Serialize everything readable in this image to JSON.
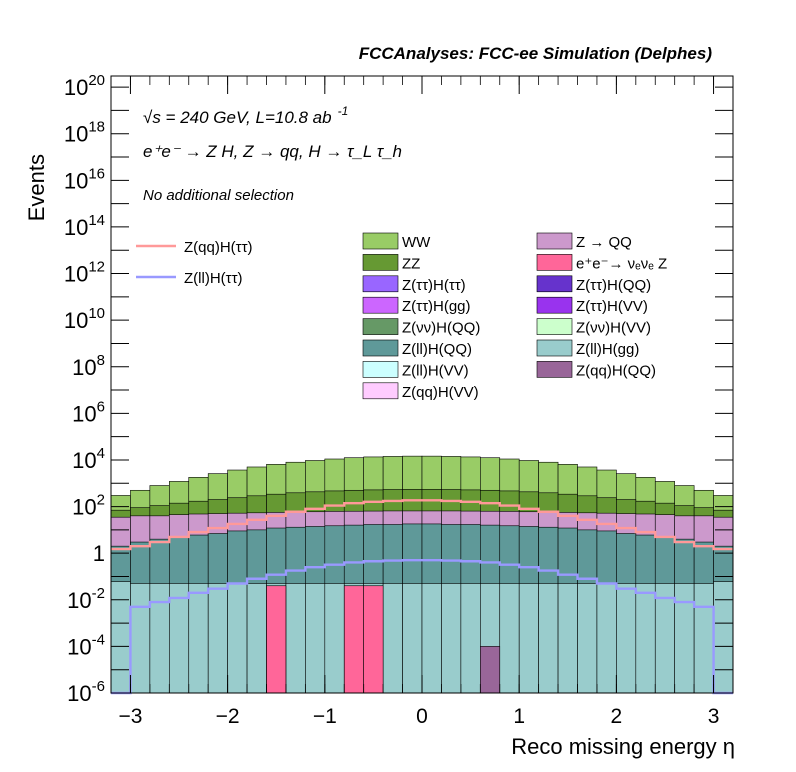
{
  "header": {
    "title": "FCCAnalyses: FCC-ee Simulation (Delphes)",
    "energy_line": "√s = 240 GeV, L=10.8 ab",
    "lumi_exp": "-1",
    "process_line": "e⁺e⁻ → Z H, Z → qq, H → τ_L τ_h",
    "selection": "No additional selection"
  },
  "chart_data": {
    "type": "bar",
    "stacked": true,
    "log_y": true,
    "xlabel": "Reco missing energy η",
    "ylabel": "Events",
    "xlim": [
      -3.2,
      3.2
    ],
    "ylim": [
      1e-06,
      3e+20
    ],
    "x_ticks": [
      -3,
      -2,
      -1,
      0,
      1,
      2,
      3
    ],
    "x_tick_labels": [
      "−3",
      "−2",
      "−1",
      "0",
      "1",
      "2",
      "3"
    ],
    "y_ticks": [
      1e-06,
      0.0001,
      0.01,
      1,
      100.0,
      10000.0,
      1000000.0,
      100000000.0,
      10000000000.0,
      1000000000000.0,
      100000000000000.0,
      1e+16,
      1e+18,
      1e+20
    ],
    "y_tick_labels": [
      {
        "base": "10",
        "exp": "-6"
      },
      {
        "base": "10",
        "exp": "-4"
      },
      {
        "base": "10",
        "exp": "-2"
      },
      {
        "base": "1",
        "exp": ""
      },
      {
        "base": "10",
        "exp": "2"
      },
      {
        "base": "10",
        "exp": "4"
      },
      {
        "base": "10",
        "exp": "6"
      },
      {
        "base": "10",
        "exp": "8"
      },
      {
        "base": "10",
        "exp": "10"
      },
      {
        "base": "10",
        "exp": "12"
      },
      {
        "base": "10",
        "exp": "14"
      },
      {
        "base": "10",
        "exp": "16"
      },
      {
        "base": "10",
        "exp": "18"
      },
      {
        "base": "10",
        "exp": "20"
      }
    ],
    "bin_centers": [
      -3.1,
      -2.9,
      -2.7,
      -2.5,
      -2.3,
      -2.1,
      -1.9,
      -1.7,
      -1.5,
      -1.3,
      -1.1,
      -0.9,
      -0.7,
      -0.5,
      -0.3,
      -0.1,
      0.1,
      0.3,
      0.5,
      0.7,
      0.9,
      1.1,
      1.3,
      1.5,
      1.7,
      1.9,
      2.1,
      2.3,
      2.5,
      2.7,
      2.9,
      3.1
    ],
    "stack_totals": [
      {
        "name": "WW",
        "color": "#99cc66",
        "values": [
          300,
          500,
          800,
          1200,
          1800,
          2600,
          3700,
          5000,
          6500,
          8000,
          9500,
          11000,
          12500,
          13500,
          14200,
          14600,
          14600,
          14200,
          13500,
          12500,
          11000,
          9500,
          8000,
          6500,
          5000,
          3700,
          2600,
          1800,
          1200,
          800,
          500,
          300
        ]
      },
      {
        "name": "ZZ",
        "color": "#669933",
        "values": [
          70,
          90,
          110,
          140,
          170,
          200,
          240,
          290,
          340,
          390,
          430,
          470,
          500,
          520,
          540,
          550,
          550,
          540,
          520,
          500,
          470,
          430,
          390,
          340,
          290,
          240,
          200,
          170,
          140,
          110,
          90,
          70
        ]
      },
      {
        "name": "Z → QQ",
        "color": "#cc99cc",
        "values": [
          35,
          40,
          40,
          45,
          48,
          50,
          52,
          54,
          56,
          58,
          60,
          62,
          63,
          64,
          65,
          65,
          65,
          65,
          64,
          63,
          62,
          60,
          58,
          56,
          54,
          52,
          50,
          48,
          45,
          40,
          40,
          35
        ]
      },
      {
        "name": "Z(ll)H(QQ)",
        "color": "#5f9999",
        "values": [
          2,
          3,
          4,
          5,
          6,
          7,
          9,
          10,
          12,
          13,
          14,
          15,
          16,
          17,
          17,
          18,
          18,
          17,
          17,
          16,
          15,
          14,
          13,
          12,
          10,
          9,
          7,
          6,
          5,
          4,
          3,
          2
        ]
      },
      {
        "name": "Z(νν)H(QQ)",
        "color": "#669966",
        "values": [
          0.04,
          0.04,
          0.04,
          0.04,
          0.04,
          0.04,
          0.04,
          0.04,
          0.04,
          0.04,
          0.04,
          0.04,
          0.04,
          0.04,
          0.04,
          0.04,
          0.04,
          0.04,
          0.04,
          0.04,
          0.04,
          0.04,
          0.04,
          0.04,
          0.04,
          0.04,
          0.04,
          0.04,
          0.04,
          0.04,
          0.04,
          0.04
        ]
      },
      {
        "name": "Z(ll)H(gg)",
        "color": "#99cccc",
        "values": [
          0.06,
          0.05,
          0.05,
          0.05,
          0.05,
          0.05,
          0.05,
          0.05,
          0.05,
          0.05,
          0.05,
          0.05,
          0.05,
          0.05,
          0.05,
          0.05,
          0.05,
          0.05,
          0.05,
          0.05,
          0.05,
          0.05,
          0.05,
          0.05,
          0.05,
          0.05,
          0.05,
          0.05,
          0.05,
          0.05,
          0.05,
          0.06
        ]
      },
      {
        "name": "e⁺e⁻→ νₑνₑ Z",
        "color": "#ff6699",
        "values": [
          null,
          null,
          null,
          null,
          null,
          null,
          null,
          null,
          0.04,
          null,
          null,
          null,
          0.04,
          0.04,
          null,
          null,
          null,
          null,
          null,
          null,
          null,
          null,
          null,
          null,
          null,
          null,
          null,
          null,
          null,
          null,
          null,
          null
        ]
      },
      {
        "name": "Z(qq)H(QQ)",
        "color": "#996699",
        "values": [
          null,
          null,
          null,
          null,
          null,
          null,
          null,
          null,
          null,
          null,
          null,
          null,
          null,
          null,
          null,
          null,
          null,
          null,
          null,
          0.0001,
          null,
          null,
          null,
          null,
          null,
          null,
          null,
          null,
          null,
          null,
          null,
          null
        ]
      }
    ],
    "signal_lines": [
      {
        "name": "Z(qq)H(ττ)",
        "color": "#ff9999",
        "values": [
          1.5,
          2,
          3,
          5,
          8,
          12,
          18,
          27,
          40,
          60,
          80,
          110,
          140,
          160,
          175,
          185,
          185,
          175,
          160,
          140,
          110,
          80,
          60,
          40,
          27,
          18,
          12,
          8,
          5,
          3,
          2,
          1.5
        ]
      },
      {
        "name": "Z(ll)H(ττ)",
        "color": "#9999ff",
        "values": [
          1e-06,
          0.005,
          0.008,
          0.012,
          0.02,
          0.03,
          0.05,
          0.08,
          0.12,
          0.18,
          0.25,
          0.32,
          0.4,
          0.45,
          0.48,
          0.5,
          0.5,
          0.48,
          0.45,
          0.4,
          0.32,
          0.25,
          0.18,
          0.12,
          0.08,
          0.05,
          0.03,
          0.02,
          0.012,
          0.008,
          0.005,
          1e-06
        ]
      }
    ],
    "legend_entries": [
      {
        "name": "WW",
        "color": "#99cc66"
      },
      {
        "name": "Z → QQ",
        "color": "#cc99cc"
      },
      {
        "name": "ZZ",
        "color": "#669933"
      },
      {
        "name": "e⁺e⁻→ νₑνₑ Z",
        "color": "#ff6699"
      },
      {
        "name": "Z(ττ)H(ττ)",
        "color": "#9966ff"
      },
      {
        "name": "Z(ττ)H(QQ)",
        "color": "#6633cc"
      },
      {
        "name": "Z(ττ)H(gg)",
        "color": "#cc66ff"
      },
      {
        "name": "Z(ττ)H(VV)",
        "color": "#9933ee"
      },
      {
        "name": "Z(νν)H(QQ)",
        "color": "#669966"
      },
      {
        "name": "Z(νν)H(VV)",
        "color": "#ccffcc"
      },
      {
        "name": "Z(ll)H(QQ)",
        "color": "#5f9999"
      },
      {
        "name": "Z(ll)H(gg)",
        "color": "#99cccc"
      },
      {
        "name": "Z(ll)H(VV)",
        "color": "#ccffff"
      },
      {
        "name": "Z(qq)H(QQ)",
        "color": "#996699"
      },
      {
        "name": "Z(qq)H(VV)",
        "color": "#ffccff"
      }
    ],
    "line_legend": [
      {
        "name": "Z(qq)H(ττ)",
        "color": "#ff9999"
      },
      {
        "name": "Z(ll)H(ττ)",
        "color": "#9999ff"
      }
    ]
  }
}
